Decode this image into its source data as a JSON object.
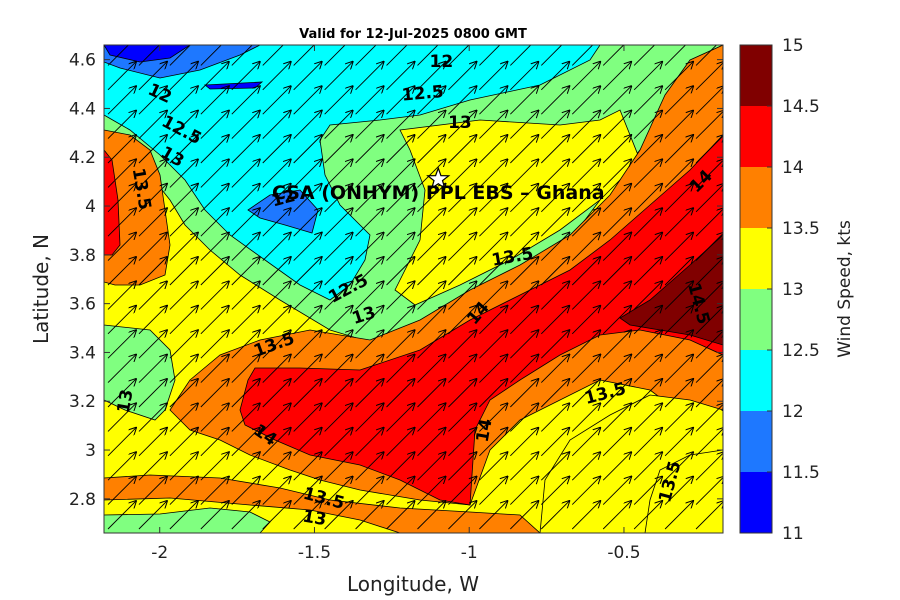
{
  "chart_data": {
    "type": "heatmap",
    "title": "Valid for 12-Jul-2025 0800 GMT",
    "xlabel": "Longitude, W",
    "ylabel": "Latitude, N",
    "xlim": [
      -2.18,
      -0.18
    ],
    "ylim": [
      2.66,
      4.66
    ],
    "xticks": [
      -2,
      -1.5,
      -1,
      -0.5
    ],
    "xtick_labels": [
      "-2",
      "-1.5",
      "-1",
      "-0.5"
    ],
    "yticks": [
      2.8,
      3,
      3.2,
      3.4,
      3.6,
      3.8,
      4,
      4.2,
      4.4,
      4.6
    ],
    "ytick_labels": [
      "2.8",
      "3",
      "3.2",
      "3.4",
      "3.6",
      "3.8",
      "4",
      "4.2",
      "4.4",
      "4.6"
    ],
    "colorbar": {
      "label": "Wind Speed, kts",
      "levels": [
        11,
        11.5,
        12,
        12.5,
        13,
        13.5,
        14,
        14.5,
        15
      ],
      "level_labels": [
        "11",
        "11.5",
        "12",
        "12.5",
        "13",
        "13.5",
        "14",
        "14.5",
        "15"
      ],
      "colors": [
        "#0000ff",
        "#1e78ff",
        "#00ffff",
        "#80ff80",
        "#ffff00",
        "#ff8000",
        "#ff0000",
        "#800000"
      ]
    },
    "site": {
      "name": "CSA (ONHYM) PPL EBS  – Ghana",
      "lon": -1.1,
      "lat": 4.11
    },
    "contour_labels": [
      {
        "text": "12",
        "lon": -1.09,
        "lat": 4.59,
        "rot": 0
      },
      {
        "text": "12.5",
        "lon": -1.15,
        "lat": 4.46,
        "rot": -5
      },
      {
        "text": "13",
        "lon": -1.03,
        "lat": 4.34,
        "rot": 0
      },
      {
        "text": "12",
        "lon": -2.0,
        "lat": 4.46,
        "rot": 25
      },
      {
        "text": "12.5",
        "lon": -1.93,
        "lat": 4.31,
        "rot": 28
      },
      {
        "text": "13",
        "lon": -1.96,
        "lat": 4.2,
        "rot": 30
      },
      {
        "text": "13.5",
        "lon": -2.06,
        "lat": 4.07,
        "rot": 80
      },
      {
        "text": "12",
        "lon": -1.6,
        "lat": 4.03,
        "rot": -15
      },
      {
        "text": "12.5",
        "lon": -1.39,
        "lat": 3.66,
        "rot": -28
      },
      {
        "text": "13",
        "lon": -1.34,
        "lat": 3.55,
        "rot": -18
      },
      {
        "text": "13.5",
        "lon": -0.86,
        "lat": 3.79,
        "rot": -10
      },
      {
        "text": "14",
        "lon": -0.97,
        "lat": 3.56,
        "rot": -50
      },
      {
        "text": "13.5",
        "lon": -1.63,
        "lat": 3.43,
        "rot": -20
      },
      {
        "text": "14",
        "lon": -0.25,
        "lat": 4.1,
        "rot": -45
      },
      {
        "text": "14.5",
        "lon": -0.26,
        "lat": 3.6,
        "rot": 75
      },
      {
        "text": "13",
        "lon": -2.11,
        "lat": 3.2,
        "rot": -80
      },
      {
        "text": "14",
        "lon": -1.66,
        "lat": 3.06,
        "rot": 35
      },
      {
        "text": "14",
        "lon": -0.95,
        "lat": 3.08,
        "rot": -80
      },
      {
        "text": "13.5",
        "lon": -0.56,
        "lat": 3.23,
        "rot": -15
      },
      {
        "text": "13.5",
        "lon": -1.47,
        "lat": 2.8,
        "rot": 15
      },
      {
        "text": "13",
        "lon": -1.5,
        "lat": 2.72,
        "rot": 10
      },
      {
        "text": "13.5",
        "lon": -0.35,
        "lat": 2.87,
        "rot": -75
      }
    ],
    "wind": {
      "direction": "southwest-to-northeast (toward ~50°)",
      "grid_step_deg": [
        0.1,
        0.1
      ]
    }
  }
}
